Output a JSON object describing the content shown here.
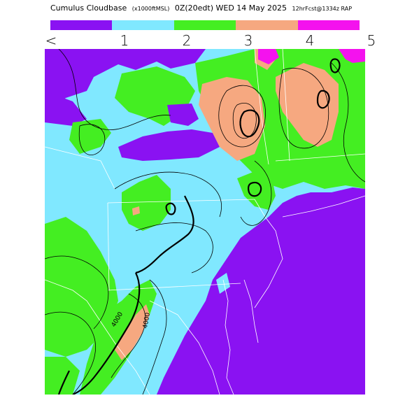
{
  "header": {
    "title_main": "Cumulus Cloudbase",
    "title_units": "(x1000ftMSL)",
    "title_time": "0Z(20edt) WED 14 May 2025",
    "title_fcst": "12hrFcst@1334z RAP"
  },
  "legend": {
    "bins": [
      {
        "color": "#8a12f2"
      },
      {
        "color": "#80e8ff"
      },
      {
        "color": "#44ee22"
      },
      {
        "color": "#f6a880"
      },
      {
        "color": "#f412ee"
      }
    ],
    "ticks": [
      "<",
      "1",
      "2",
      "3",
      "4",
      "5"
    ]
  },
  "map": {
    "contour_labels": [
      "4000",
      "4000"
    ],
    "ocean_color": "#8a12f2",
    "colors": {
      "purple": "#8a12f2",
      "cyan": "#80e8ff",
      "green": "#44ee22",
      "salmon": "#f6a880",
      "magenta": "#f412ee"
    }
  }
}
